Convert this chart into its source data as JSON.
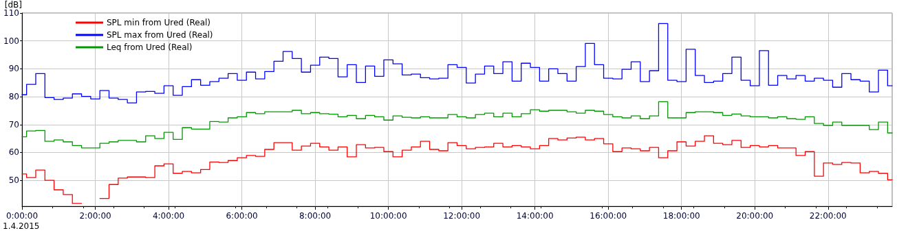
{
  "chart_data": {
    "type": "step",
    "ylabel": "[dB]",
    "annotations": [
      "1.4.2015"
    ],
    "x": [
      0,
      0.25,
      0.5,
      0.75,
      1,
      1.25,
      1.5,
      1.75,
      2,
      2.25,
      2.5,
      2.75,
      3,
      3.25,
      3.5,
      3.75,
      4,
      4.25,
      4.5,
      4.75,
      5,
      5.25,
      5.5,
      5.75,
      6,
      6.25,
      6.5,
      6.75,
      7,
      7.25,
      7.5,
      7.75,
      8,
      8.25,
      8.5,
      8.75,
      9,
      9.25,
      9.5,
      9.75,
      10,
      10.25,
      10.5,
      10.75,
      11,
      11.25,
      11.5,
      11.75,
      12,
      12.25,
      12.5,
      12.75,
      13,
      13.25,
      13.5,
      13.75,
      14,
      14.25,
      14.5,
      14.75,
      15,
      15.25,
      15.5,
      15.75,
      16,
      16.25,
      16.5,
      16.75,
      17,
      17.25,
      17.5,
      17.75,
      18,
      18.25,
      18.5,
      18.75,
      19,
      19.25,
      19.5,
      19.75,
      20,
      20.25,
      20.5,
      20.75,
      21,
      21.25,
      21.5,
      21.75,
      22,
      22.25,
      22.5,
      22.75,
      23,
      23.25,
      23.5,
      23.75
    ],
    "series": [
      {
        "name": "SPL min from Ured (Real)",
        "color": "#ff0000",
        "values": [
          52.3,
          51.0,
          53.7,
          50.0,
          46.6,
          44.9,
          41.7,
          null,
          null,
          43.5,
          48.5,
          50.8,
          51.2,
          51.2,
          51.0,
          55.2,
          55.9,
          52.5,
          53.2,
          52.7,
          53.9,
          56.6,
          56.4,
          57.1,
          58.1,
          58.9,
          58.6,
          61.1,
          63.5,
          63.5,
          60.8,
          62.3,
          63.3,
          62.0,
          60.8,
          62.0,
          58.4,
          62.8,
          61.6,
          61.8,
          60.3,
          58.4,
          60.8,
          62.0,
          64.0,
          61.1,
          60.6,
          63.5,
          62.5,
          61.3,
          61.8,
          62.0,
          63.3,
          62.0,
          62.5,
          62.0,
          61.3,
          62.5,
          65.0,
          64.5,
          65.2,
          65.5,
          64.5,
          65.0,
          63.1,
          60.3,
          61.6,
          61.3,
          60.6,
          61.8,
          58.1,
          60.6,
          63.8,
          62.3,
          64.0,
          66.0,
          63.3,
          62.8,
          64.3,
          61.8,
          62.5,
          62.0,
          62.5,
          61.6,
          61.6,
          58.9,
          60.3,
          51.5,
          56.2,
          55.7,
          56.4,
          56.2,
          52.7,
          53.2,
          52.5,
          50.2
        ]
      },
      {
        "name": "SPL max from Ured (Real)",
        "color": "#0000ff",
        "values": [
          80.7,
          84.4,
          88.3,
          79.7,
          79.0,
          79.5,
          81.0,
          80.1,
          79.2,
          82.2,
          79.5,
          79.0,
          77.8,
          81.7,
          81.9,
          81.2,
          83.9,
          80.5,
          83.6,
          86.1,
          84.1,
          85.4,
          86.6,
          88.3,
          85.9,
          88.8,
          86.4,
          89.0,
          92.7,
          96.2,
          93.7,
          88.8,
          91.3,
          94.2,
          93.7,
          87.1,
          91.5,
          85.1,
          91.0,
          87.3,
          93.2,
          91.8,
          87.8,
          88.1,
          86.8,
          86.4,
          86.6,
          91.5,
          90.5,
          84.9,
          88.1,
          91.0,
          88.3,
          92.5,
          85.6,
          92.0,
          90.5,
          85.6,
          90.0,
          88.3,
          85.6,
          90.8,
          99.1,
          91.5,
          86.6,
          86.4,
          89.8,
          92.5,
          85.4,
          89.3,
          106.2,
          85.9,
          85.4,
          97.0,
          87.6,
          85.1,
          85.6,
          88.3,
          94.2,
          85.9,
          83.9,
          96.5,
          84.1,
          87.6,
          86.4,
          87.6,
          85.6,
          86.6,
          85.9,
          83.4,
          88.3,
          86.1,
          85.6,
          81.7,
          89.5,
          83.9
        ]
      },
      {
        "name": "Leq from Ured (Real)",
        "color": "#009900",
        "values": [
          65.6,
          67.7,
          67.9,
          64.0,
          64.5,
          63.8,
          62.5,
          61.6,
          61.6,
          63.3,
          63.8,
          64.3,
          64.3,
          63.8,
          66.0,
          65.0,
          67.2,
          64.7,
          68.9,
          68.4,
          68.4,
          71.1,
          70.9,
          72.4,
          72.8,
          74.3,
          73.9,
          74.6,
          74.6,
          74.6,
          75.1,
          73.9,
          74.3,
          73.9,
          73.7,
          72.8,
          73.3,
          72.1,
          73.3,
          72.8,
          71.6,
          73.1,
          72.6,
          72.4,
          72.8,
          72.4,
          72.4,
          73.6,
          72.8,
          72.4,
          73.6,
          74.1,
          72.8,
          74.1,
          72.8,
          73.9,
          75.3,
          74.8,
          75.1,
          75.1,
          74.6,
          74.1,
          75.1,
          74.8,
          73.6,
          72.8,
          72.4,
          73.1,
          72.1,
          73.1,
          78.2,
          72.4,
          72.4,
          74.3,
          74.6,
          74.6,
          74.3,
          73.3,
          73.8,
          73.1,
          72.8,
          72.8,
          72.4,
          72.8,
          72.1,
          71.9,
          72.8,
          70.4,
          69.7,
          70.9,
          69.7,
          69.7,
          69.7,
          68.2,
          70.9,
          67.0
        ]
      }
    ],
    "xlim": [
      0,
      23.75
    ],
    "xticks": [
      {
        "value": 0,
        "label": "0:00:00"
      },
      {
        "value": 2,
        "label": "2:00:00"
      },
      {
        "value": 4,
        "label": "4:00:00"
      },
      {
        "value": 6,
        "label": "6:00:00"
      },
      {
        "value": 8,
        "label": "8:00:00"
      },
      {
        "value": 10,
        "label": "10:00:00"
      },
      {
        "value": 12,
        "label": "12:00:00"
      },
      {
        "value": 14,
        "label": "14:00:00"
      },
      {
        "value": 16,
        "label": "16:00:00"
      },
      {
        "value": 18,
        "label": "18:00:00"
      },
      {
        "value": 20,
        "label": "20:00:00"
      },
      {
        "value": 22,
        "label": "22:00:00"
      }
    ],
    "ylim": [
      40.7,
      110
    ],
    "yticks": [
      50,
      60,
      70,
      80,
      90,
      100,
      110
    ],
    "grid": true,
    "legend": "top left",
    "line_style": "solid"
  }
}
